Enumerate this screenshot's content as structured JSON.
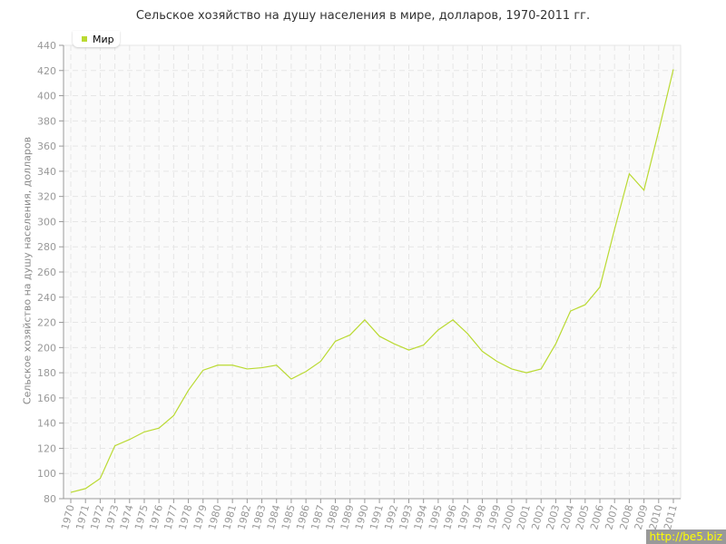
{
  "chart_data": {
    "type": "line",
    "title": "Сельское хозяйство на душу населения в мире, долларов, 1970-2011 гг.",
    "xlabel": "",
    "ylabel": "Сельское хозяйство на душу населения, долларов",
    "ylim": [
      80,
      440
    ],
    "yticks": [
      80,
      100,
      120,
      140,
      160,
      180,
      200,
      220,
      240,
      260,
      280,
      300,
      320,
      340,
      360,
      380,
      400,
      420,
      440
    ],
    "grid": true,
    "legend": "top-left",
    "x": [
      1970,
      1971,
      1972,
      1973,
      1974,
      1975,
      1976,
      1977,
      1978,
      1979,
      1980,
      1981,
      1982,
      1983,
      1984,
      1985,
      1986,
      1987,
      1988,
      1989,
      1990,
      1991,
      1992,
      1993,
      1994,
      1995,
      1996,
      1997,
      1998,
      1999,
      2000,
      2001,
      2002,
      2003,
      2004,
      2005,
      2006,
      2007,
      2008,
      2009,
      2010,
      2011
    ],
    "series": [
      {
        "name": "Мир",
        "color": "#bada32",
        "values": [
          85,
          88,
          96,
          122,
          127,
          133,
          136,
          146,
          166,
          182,
          186,
          186,
          183,
          184,
          186,
          175,
          181,
          189,
          205,
          210,
          222,
          209,
          203,
          198,
          202,
          214,
          222,
          211,
          197,
          189,
          183,
          180,
          183,
          203,
          229,
          234,
          248,
          294,
          338,
          325,
          372,
          421
        ]
      }
    ]
  },
  "watermark": "http://be5.biz"
}
